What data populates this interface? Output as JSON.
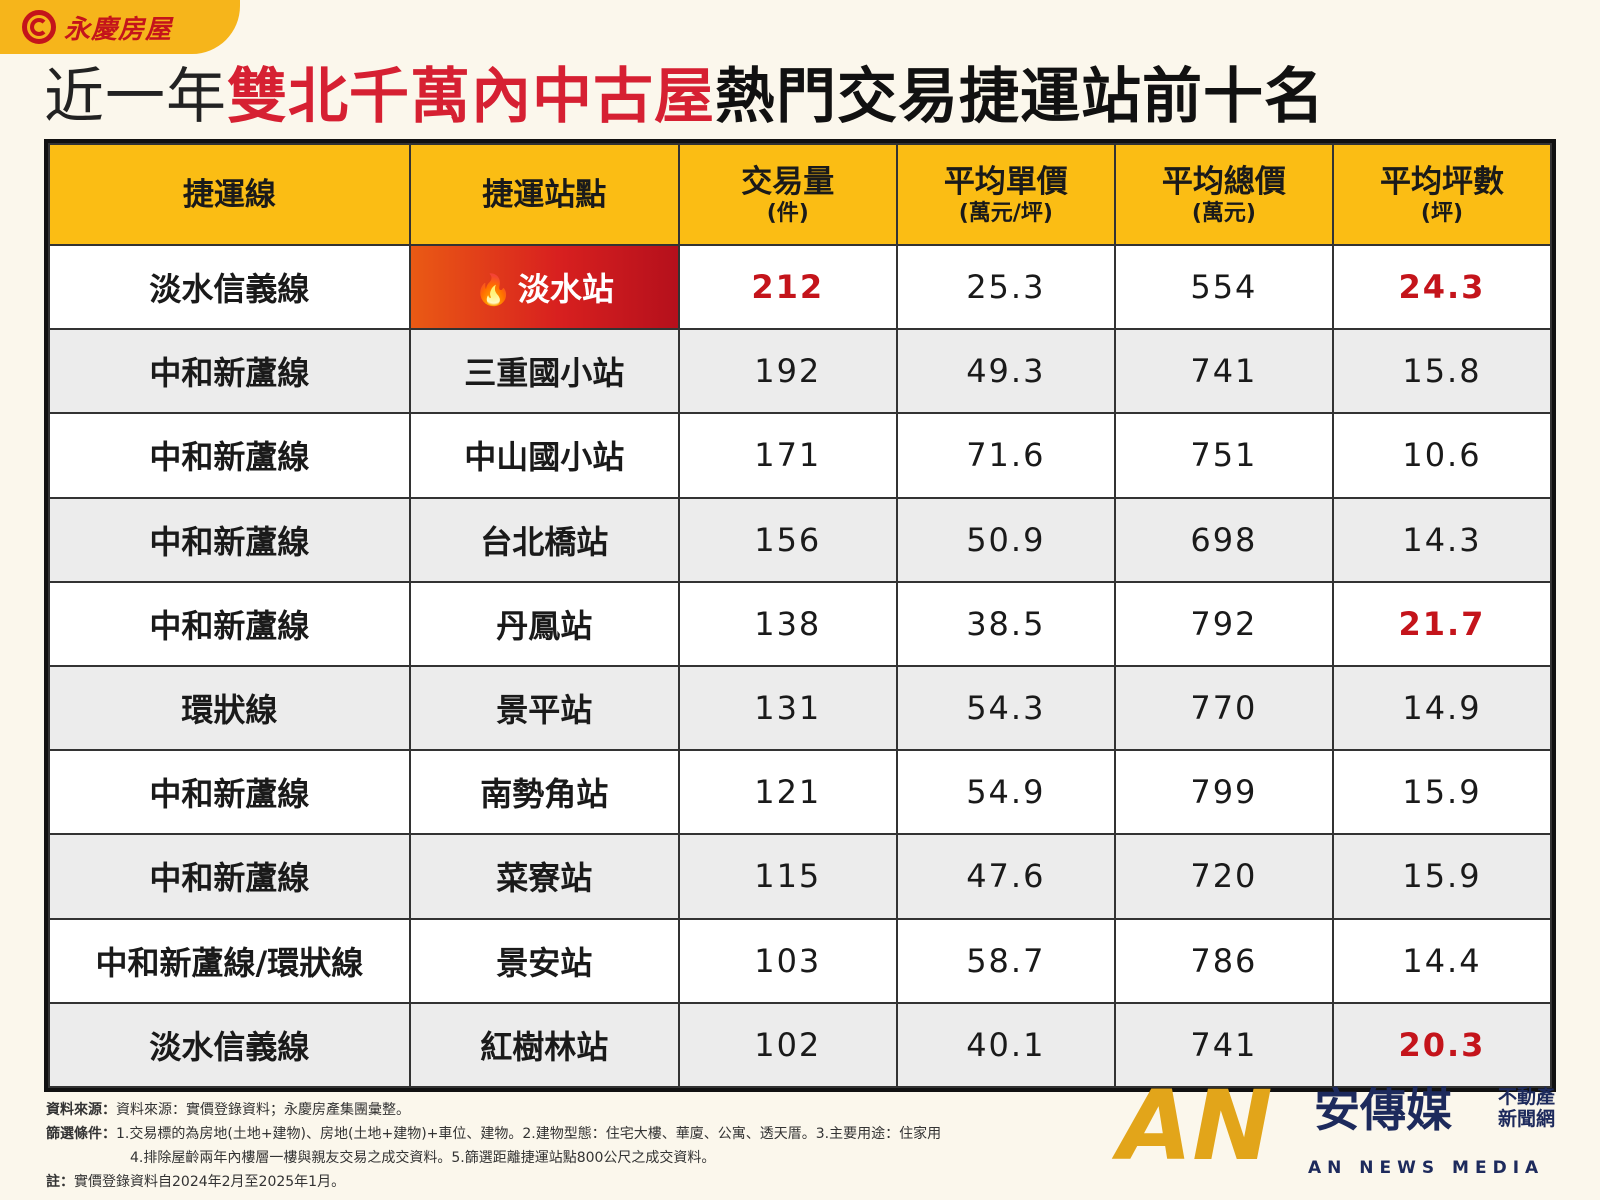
{
  "brand": {
    "logo_text": "永慶房屋",
    "logo_icon": "yungching-swirl-icon"
  },
  "headline": {
    "pre": "近一年",
    "highlight": "雙北千萬內中古屋",
    "post": "熱門交易捷運站前十名"
  },
  "colors": {
    "accent_yellow": "#fbbd14",
    "accent_red": "#c4141b",
    "row_alt": "#ececec"
  },
  "table": {
    "headers": [
      {
        "main": "捷運線",
        "sub": ""
      },
      {
        "main": "捷運站點",
        "sub": ""
      },
      {
        "main": "交易量",
        "sub": "(件)"
      },
      {
        "main": "平均單價",
        "sub": "(萬元/坪)"
      },
      {
        "main": "平均總價",
        "sub": "(萬元)"
      },
      {
        "main": "平均坪數",
        "sub": "(坪)"
      }
    ],
    "rows": [
      {
        "line": "淡水信義線",
        "station": "淡水站",
        "volume": "212",
        "unit_price": "25.3",
        "total_price": "554",
        "area": "24.3"
      },
      {
        "line": "中和新蘆線",
        "station": "三重國小站",
        "volume": "192",
        "unit_price": "49.3",
        "total_price": "741",
        "area": "15.8"
      },
      {
        "line": "中和新蘆線",
        "station": "中山國小站",
        "volume": "171",
        "unit_price": "71.6",
        "total_price": "751",
        "area": "10.6"
      },
      {
        "line": "中和新蘆線",
        "station": "台北橋站",
        "volume": "156",
        "unit_price": "50.9",
        "total_price": "698",
        "area": "14.3"
      },
      {
        "line": "中和新蘆線",
        "station": "丹鳳站",
        "volume": "138",
        "unit_price": "38.5",
        "total_price": "792",
        "area": "21.7"
      },
      {
        "line": "環狀線",
        "station": "景平站",
        "volume": "131",
        "unit_price": "54.3",
        "total_price": "770",
        "area": "14.9"
      },
      {
        "line": "中和新蘆線",
        "station": "南勢角站",
        "volume": "121",
        "unit_price": "54.9",
        "total_price": "799",
        "area": "15.9"
      },
      {
        "line": "中和新蘆線",
        "station": "菜寮站",
        "volume": "115",
        "unit_price": "47.6",
        "total_price": "720",
        "area": "15.9"
      },
      {
        "line": "中和新蘆線/環狀線",
        "station": "景安站",
        "volume": "103",
        "unit_price": "58.7",
        "total_price": "786",
        "area": "14.4"
      },
      {
        "line": "淡水信義線",
        "station": "紅樹林站",
        "volume": "102",
        "unit_price": "40.1",
        "total_price": "741",
        "area": "20.3"
      }
    ]
  },
  "notes": {
    "source_label": "資料來源：",
    "source_text": "資料來源：實價登錄資料；永慶房產集團彙整。",
    "filter_label": "篩選條件：",
    "filter_text_1": "1.交易標的為房地(土地+建物)、房地(土地+建物)+車位、建物。2.建物型態：住宅大樓、華廈、公寓、透天厝。3.主要用途：住家用",
    "filter_text_2": "4.排除屋齡兩年內樓層一樓與親友交易之成交資料。5.篩選距離捷運站點800公尺之成交資料。",
    "remark_label": "註：",
    "remark_text": "實價登錄資料自2024年2月至2025年1月。"
  },
  "watermark": {
    "mark": "AN",
    "name": "安傳媒",
    "side_1": "不動產",
    "side_2": "新聞網",
    "english": "AN NEWS MEDIA"
  }
}
